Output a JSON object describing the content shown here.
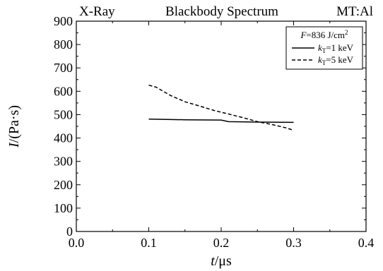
{
  "chart_data": {
    "type": "line",
    "header": {
      "left": "X-Ray",
      "center": "Blackbody Spectrum",
      "right": "MT:Al"
    },
    "xlabel": {
      "var": "t",
      "unit": "/μs"
    },
    "ylabel": {
      "var": "I",
      "unit": "/(Pa·s)"
    },
    "xlim": [
      0.0,
      0.4
    ],
    "ylim": [
      0,
      900
    ],
    "xticks": [
      "0.0",
      "0.1",
      "0.2",
      "0.3",
      "0.4"
    ],
    "yticks": [
      "0",
      "100",
      "200",
      "300",
      "400",
      "500",
      "600",
      "700",
      "800",
      "900"
    ],
    "grid": false,
    "legend_position": "top-right",
    "legend": {
      "fluence": {
        "var": "F",
        "text": "=836 J/cm",
        "sup": "2"
      },
      "entries": [
        {
          "var": "k",
          "sub": "T",
          "text": "=1 keV",
          "style": "solid"
        },
        {
          "var": "k",
          "sub": "T",
          "text": "=5 keV",
          "style": "dashed"
        }
      ]
    },
    "series": [
      {
        "style": "solid",
        "x": [
          0.1,
          0.15,
          0.2,
          0.21,
          0.25,
          0.3
        ],
        "y": [
          481,
          478,
          477,
          470,
          468,
          467
        ]
      },
      {
        "style": "dashed",
        "x": [
          0.1,
          0.11,
          0.13,
          0.15,
          0.17,
          0.19,
          0.21,
          0.23,
          0.25,
          0.27,
          0.29,
          0.3
        ],
        "y": [
          626,
          618,
          582,
          555,
          537,
          518,
          503,
          487,
          470,
          458,
          443,
          433
        ]
      }
    ]
  }
}
